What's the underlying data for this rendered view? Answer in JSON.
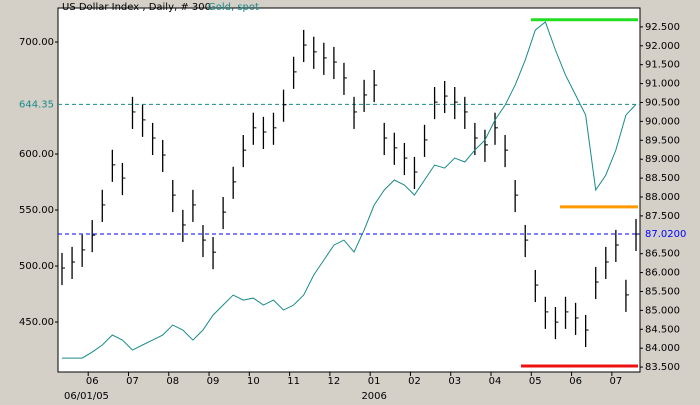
{
  "chart_data": {
    "type": "ohlc",
    "title": "US Dollar Index , Daily, # 300",
    "categories": [
      null,
      null,
      null,
      "06",
      null,
      null,
      null,
      "07",
      null,
      null,
      null,
      "08",
      null,
      null,
      null,
      "09",
      null,
      null,
      null,
      "10",
      null,
      null,
      null,
      "11",
      null,
      null,
      null,
      "12",
      null,
      null,
      null,
      "01",
      null,
      null,
      null,
      "02",
      null,
      null,
      null,
      "03",
      null,
      null,
      null,
      "04",
      null,
      null,
      null,
      "05",
      null,
      null,
      null,
      "06",
      null,
      null,
      null,
      "07",
      null,
      null
    ],
    "start_date": "06/01/05",
    "year_label": "2006",
    "series": [
      {
        "type": "ohlc",
        "axis": "y2",
        "color": "#000000",
        "last_label": "87.0200",
        "last_color": "#0000ff",
        "high": [
          86.52,
          86.68,
          87.0,
          87.39,
          88.19,
          89.25,
          88.9,
          90.65,
          90.44,
          89.96,
          89.51,
          88.45,
          87.66,
          88.19,
          87.26,
          86.94,
          88.0,
          88.8,
          89.64,
          90.23,
          90.12,
          90.23,
          90.84,
          91.71,
          92.42,
          92.24,
          92.08,
          91.97,
          91.55,
          90.65,
          91.1,
          91.36,
          89.96,
          89.7,
          89.43,
          89.06,
          89.91,
          90.91,
          91.07,
          90.91,
          90.65,
          89.96,
          89.78,
          90.23,
          89.64,
          88.45,
          87.26,
          86.07,
          85.36,
          85.09,
          85.36,
          85.2,
          84.88,
          86.15,
          86.68,
          87.13,
          85.81,
          87.42
        ],
        "low": [
          85.67,
          85.83,
          86.15,
          86.54,
          87.34,
          88.4,
          88.05,
          89.8,
          89.59,
          89.11,
          88.66,
          87.6,
          86.81,
          87.34,
          86.41,
          86.09,
          87.15,
          87.95,
          88.79,
          89.38,
          89.27,
          89.38,
          89.99,
          90.86,
          91.57,
          91.39,
          91.23,
          91.12,
          90.7,
          89.8,
          90.25,
          90.51,
          89.11,
          88.85,
          88.58,
          88.21,
          89.06,
          90.06,
          90.22,
          90.06,
          89.8,
          89.11,
          88.93,
          89.38,
          88.79,
          87.6,
          86.41,
          85.22,
          84.51,
          84.24,
          84.51,
          84.35,
          84.03,
          85.3,
          85.83,
          86.28,
          84.96,
          86.57
        ],
        "values": [
          86.12,
          86.28,
          86.6,
          86.99,
          87.79,
          88.85,
          88.5,
          90.25,
          90.04,
          89.56,
          89.11,
          88.05,
          87.26,
          87.79,
          86.86,
          86.54,
          87.6,
          88.4,
          89.24,
          89.83,
          89.72,
          89.83,
          90.44,
          91.31,
          92.02,
          91.84,
          91.68,
          91.57,
          91.15,
          90.25,
          90.7,
          90.96,
          89.56,
          89.3,
          89.03,
          88.66,
          89.51,
          90.51,
          90.67,
          90.51,
          90.25,
          89.56,
          89.38,
          89.83,
          89.24,
          88.05,
          86.86,
          85.67,
          84.96,
          84.69,
          84.96,
          84.8,
          84.48,
          85.75,
          86.28,
          86.73,
          85.41,
          87.02
        ]
      },
      {
        "type": "line",
        "axis": "y",
        "name": "Gold, spot",
        "color": "#1a8a8a",
        "last_label": "644.35",
        "last_color": "#1a8a8a",
        "values": [
          417.8,
          417.8,
          417.8,
          423.2,
          429.5,
          438.4,
          433.9,
          425.0,
          429.5,
          433.9,
          438.4,
          447.3,
          442.9,
          433.9,
          442.9,
          456.2,
          465.2,
          474.1,
          469.6,
          471.4,
          465.2,
          469.6,
          460.7,
          465.2,
          474.1,
          492.0,
          505.3,
          518.7,
          523.2,
          512.5,
          532.1,
          554.5,
          567.9,
          576.8,
          572.3,
          563.4,
          576.8,
          590.2,
          587.5,
          596.4,
          592.9,
          603.6,
          612.5,
          630.4,
          643.7,
          661.6,
          683.9,
          710.7,
          717.9,
          692.9,
          670.5,
          652.7,
          634.8,
          567.9,
          581.2,
          603.6,
          634.8,
          644.35
        ]
      }
    ],
    "levels": [
      {
        "value": 92.69,
        "color": "#22dd22"
      },
      {
        "value": 87.74,
        "color": "#ff9900"
      },
      {
        "value": 83.53,
        "color": "#ee1111"
      }
    ],
    "ylim": [
      405.4,
      730.4
    ],
    "yticks": [
      {
        "value": 450,
        "label": "450.00"
      },
      {
        "value": 500,
        "label": "500.00"
      },
      {
        "value": 550,
        "label": "550.00"
      },
      {
        "value": 600,
        "label": "600.00"
      },
      {
        "value": 700,
        "label": "700.00"
      }
    ],
    "y2lim": [
      83.37,
      93.0
    ],
    "y2ticks": [
      {
        "value": 83.5,
        "label": "83.500"
      },
      {
        "value": 84,
        "label": "84.000"
      },
      {
        "value": 84.5,
        "label": "84.500"
      },
      {
        "value": 85,
        "label": "85.000"
      },
      {
        "value": 85.5,
        "label": "85.500"
      },
      {
        "value": 86,
        "label": "86.000"
      },
      {
        "value": 86.5,
        "label": "86.500"
      },
      {
        "value": 87.5,
        "label": "87.500"
      },
      {
        "value": 88,
        "label": "88.000"
      },
      {
        "value": 88.5,
        "label": "88.500"
      },
      {
        "value": 89,
        "label": "89.000"
      },
      {
        "value": 89.5,
        "label": "89.500"
      },
      {
        "value": 90,
        "label": "90.000"
      },
      {
        "value": 90.5,
        "label": "90.500"
      },
      {
        "value": 91,
        "label": "91.000"
      },
      {
        "value": 91.5,
        "label": "91.500"
      },
      {
        "value": 92,
        "label": "92.000"
      },
      {
        "value": 92.5,
        "label": "92.500"
      }
    ]
  }
}
